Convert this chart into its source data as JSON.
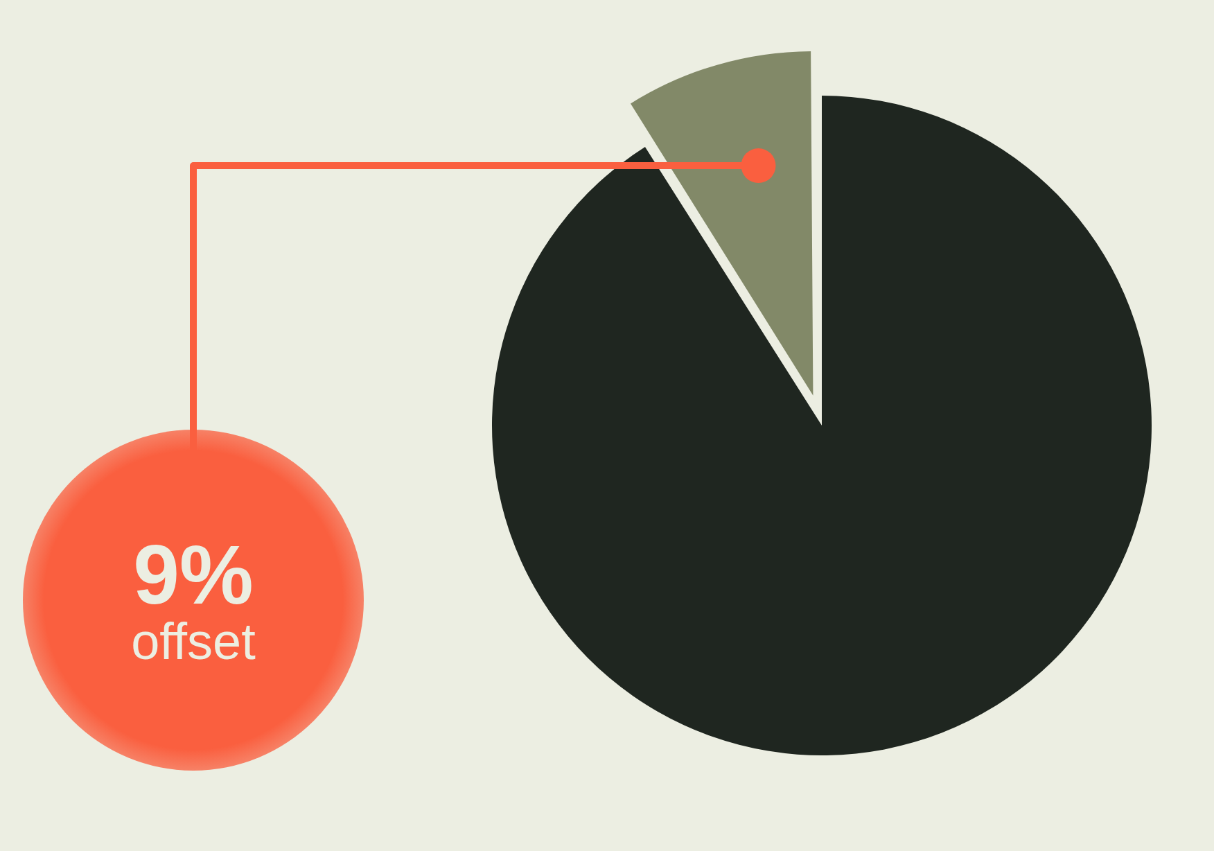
{
  "chart_data": {
    "type": "pie",
    "categories": [
      "offset",
      null
    ],
    "values": [
      9,
      91
    ],
    "colors": [
      "#828968",
      "#1f2620"
    ],
    "value_labels": [
      "9%",
      null
    ],
    "legend": false
  }
}
